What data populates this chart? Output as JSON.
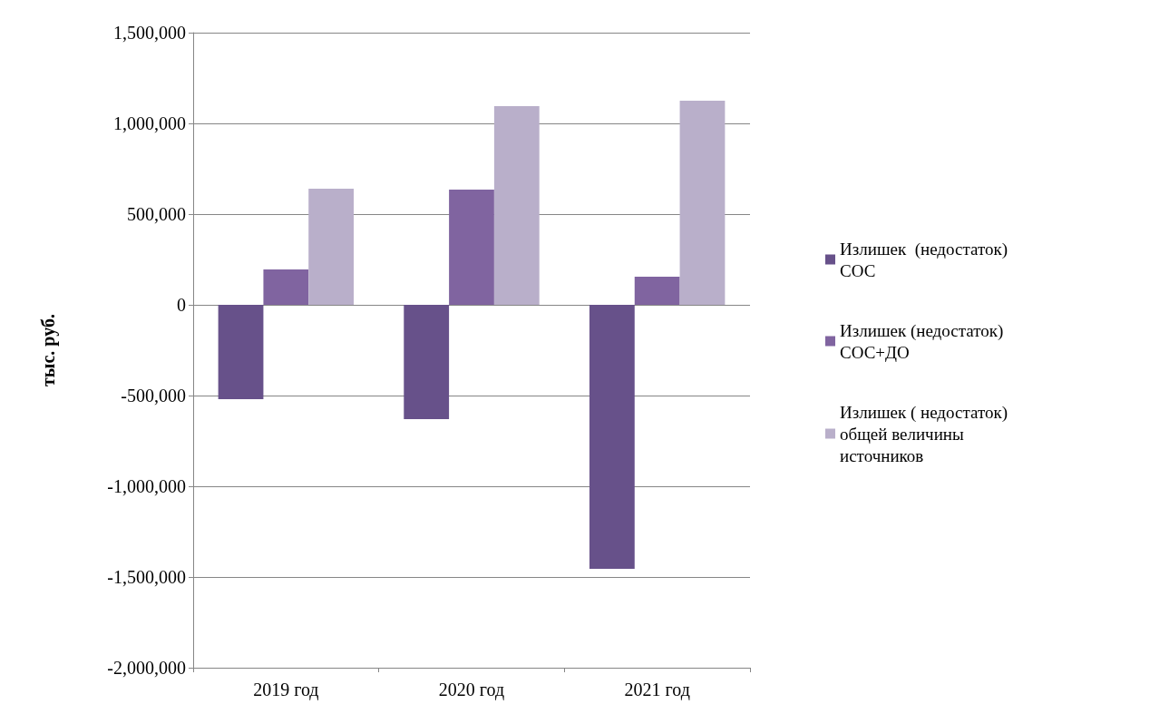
{
  "chart_data": {
    "type": "bar",
    "categories": [
      "2019 год",
      "2020 год",
      "2021 год"
    ],
    "ylabel": "тыс. руб.",
    "series": [
      {
        "name": "Излишек  (недостаток) СОС",
        "color": "#67518a",
        "values": [
          -520000,
          -630000,
          -1455000
        ]
      },
      {
        "name": "Излишек (недостаток) СОС+ДО",
        "color": "#8064a0",
        "values": [
          195000,
          635000,
          155000
        ]
      },
      {
        "name": "Излишек ( недостаток) общей величины источников",
        "color": "#b9afca",
        "values": [
          640000,
          1095000,
          1125000
        ]
      }
    ],
    "ylim": [
      -2000000,
      1500000
    ],
    "yticks": [
      {
        "value": -2000000,
        "label": "-2,000,000"
      },
      {
        "value": -1500000,
        "label": "-1,500,000"
      },
      {
        "value": -1000000,
        "label": "-1,000,000"
      },
      {
        "value": -500000,
        "label": "-500,000"
      },
      0,
      {
        "value": 500000,
        "label": "500,000"
      },
      {
        "value": 1000000,
        "label": "1,000,000"
      },
      {
        "value": 1500000,
        "label": "1,500,000"
      }
    ],
    "grid": "y",
    "legend": "right"
  }
}
